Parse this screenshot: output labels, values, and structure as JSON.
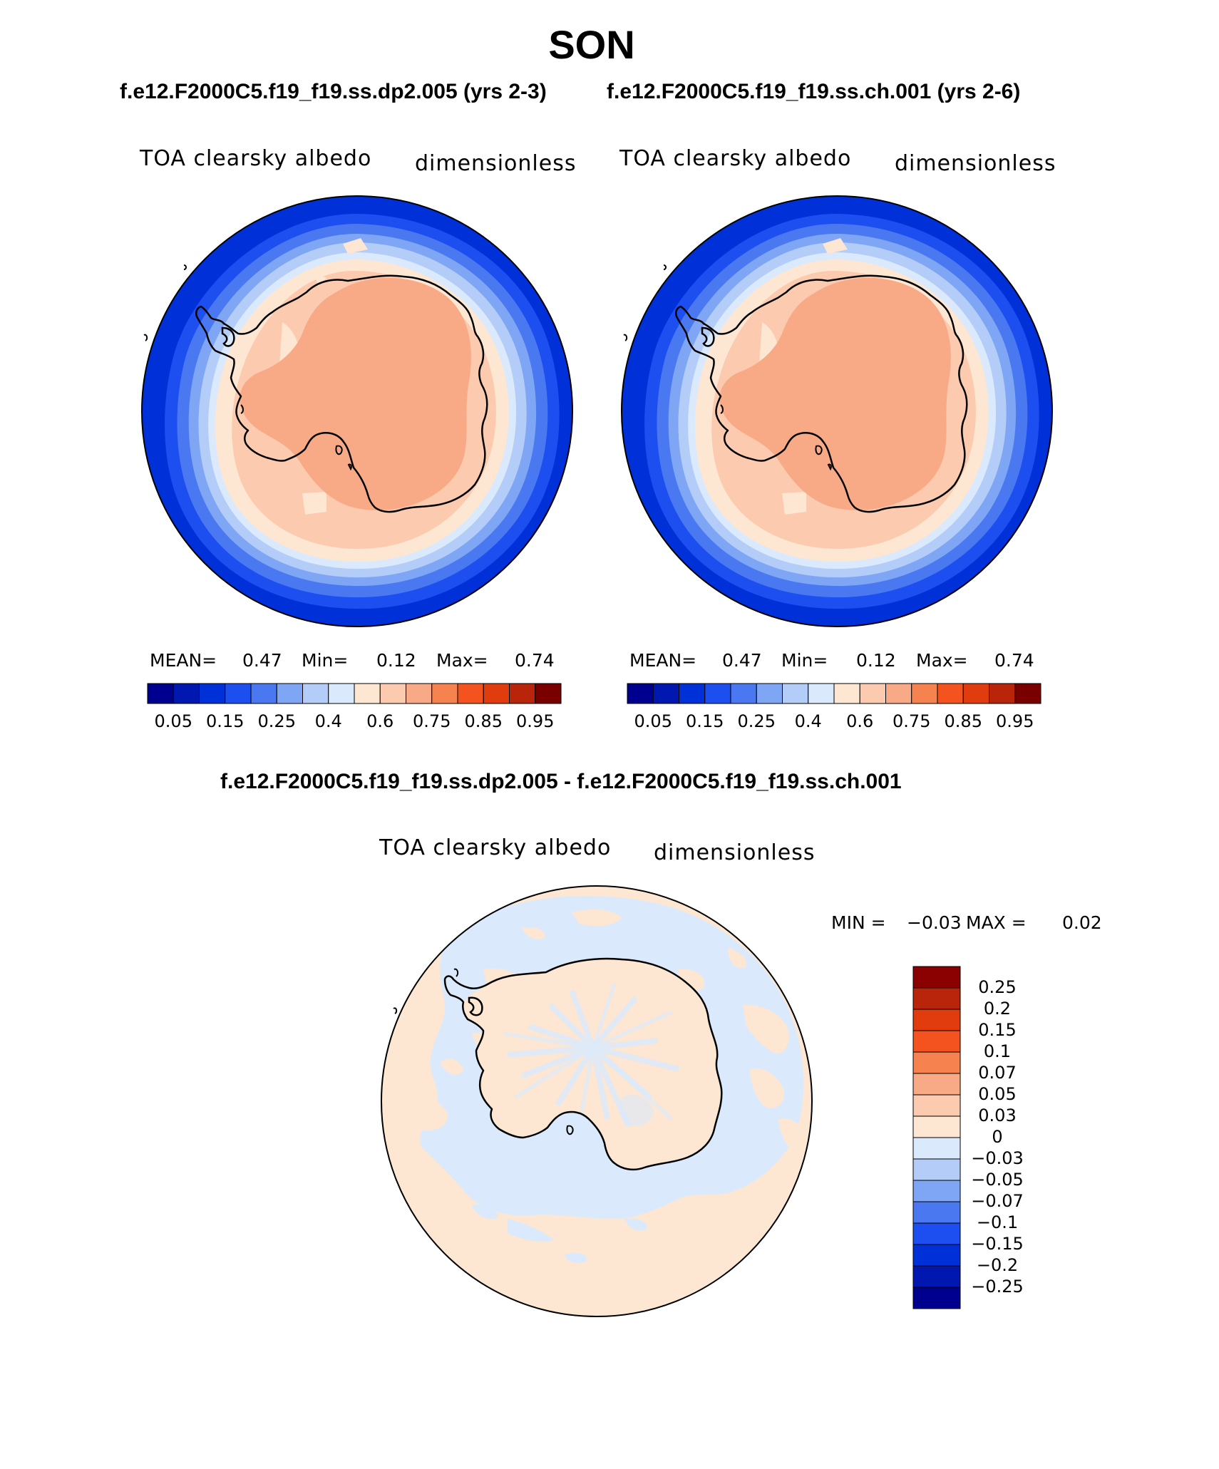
{
  "title": "SON",
  "case_titles": {
    "left": "f.e12.F2000C5.f19_f19.ss.dp2.005 (yrs 2-3)",
    "right": "f.e12.F2000C5.f19_f19.ss.ch.001 (yrs 2-6)",
    "diff": "f.e12.F2000C5.f19_f19.ss.dp2.005 - f.e12.F2000C5.f19_f19.ss.ch.001"
  },
  "panels": {
    "left": {
      "variable": "TOA clearsky albedo",
      "units": "dimensionless",
      "mean_label": "MEAN=",
      "mean": "0.47",
      "min_label": "Min=",
      "min": "0.12",
      "max_label": "Max=",
      "max": "0.74"
    },
    "right": {
      "variable": "TOA clearsky albedo",
      "units": "dimensionless",
      "mean_label": "MEAN=",
      "mean": "0.47",
      "min_label": "Min=",
      "min": "0.12",
      "max_label": "Max=",
      "max": "0.74"
    },
    "diff": {
      "variable": "TOA clearsky albedo",
      "units": "dimensionless",
      "min_label": "MIN =",
      "min": "−0.03",
      "max_label": "MAX =",
      "max": "0.02"
    }
  },
  "colorbar_main": {
    "colors": [
      "#00008f",
      "#0018b0",
      "#0030d8",
      "#1c4ef0",
      "#4a78f0",
      "#7ea6f4",
      "#b4ccf8",
      "#daeafc",
      "#fde6d2",
      "#fccaae",
      "#f8aa86",
      "#f6824f",
      "#f45320",
      "#e03c0e",
      "#b8250a",
      "#7a0000"
    ],
    "tick_labels": [
      "0.05",
      "0.15",
      "0.25",
      "0.4",
      "0.6",
      "0.75",
      "0.85",
      "0.95"
    ]
  },
  "colorbar_diff": {
    "colors_top_to_bottom": [
      "#8b0000",
      "#b8250a",
      "#e03c0e",
      "#f45320",
      "#f6824f",
      "#f8aa86",
      "#fccaae",
      "#fde6d2",
      "#daeafc",
      "#b4ccf8",
      "#7ea6f4",
      "#4a78f0",
      "#1c4ef0",
      "#0030d8",
      "#0018b0",
      "#00008f"
    ],
    "tick_labels": [
      "0.25",
      "0.2",
      "0.15",
      "0.1",
      "0.07",
      "0.05",
      "0.03",
      "0",
      "−0.03",
      "−0.05",
      "−0.07",
      "−0.1",
      "−0.15",
      "−0.2",
      "−0.25"
    ]
  }
}
